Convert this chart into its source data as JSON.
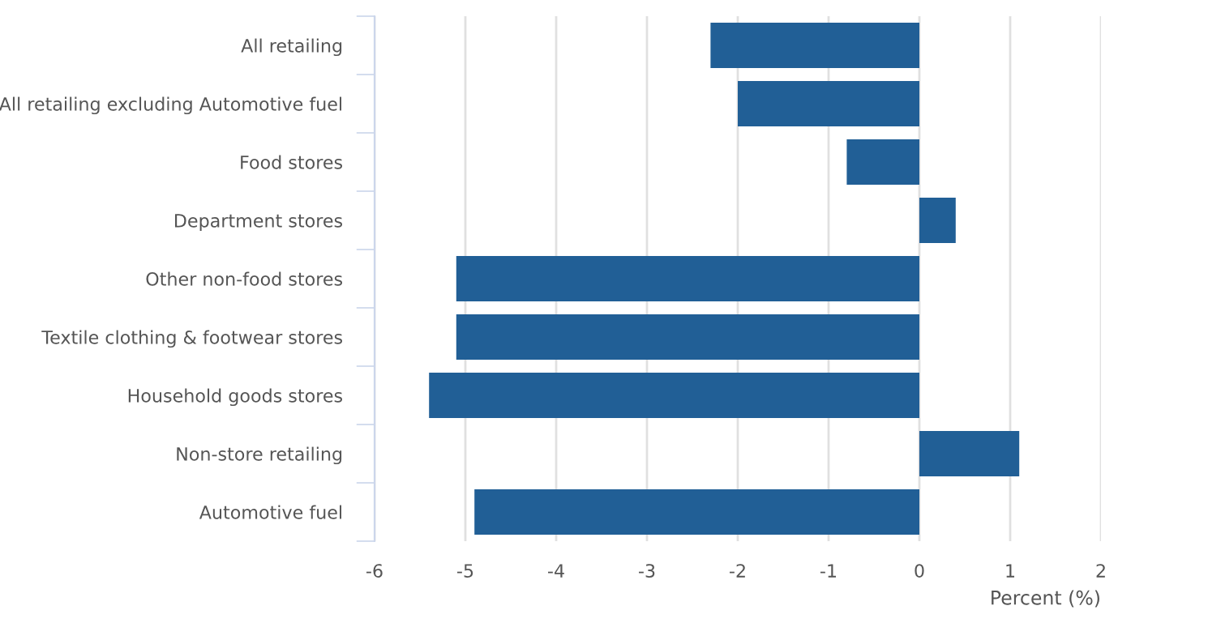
{
  "chart_data": {
    "type": "bar",
    "orientation": "horizontal",
    "xlabel": "Percent (%)",
    "categories": [
      "All retailing",
      "All retailing excluding Automotive fuel",
      "Food stores",
      "Department stores",
      "Other non-food stores",
      "Textile clothing & footwear stores",
      "Household goods stores",
      "Non-store retailing",
      "Automotive fuel"
    ],
    "values": [
      -2.3,
      -2.0,
      -0.8,
      0.4,
      -5.1,
      -5.1,
      -5.4,
      1.1,
      -4.9
    ],
    "color": "#215f96",
    "xlim": [
      -6,
      2
    ],
    "xticks": [
      -6,
      -5,
      -4,
      -3,
      -2,
      -1,
      0,
      1,
      2
    ],
    "grid": "x",
    "legend": false
  }
}
